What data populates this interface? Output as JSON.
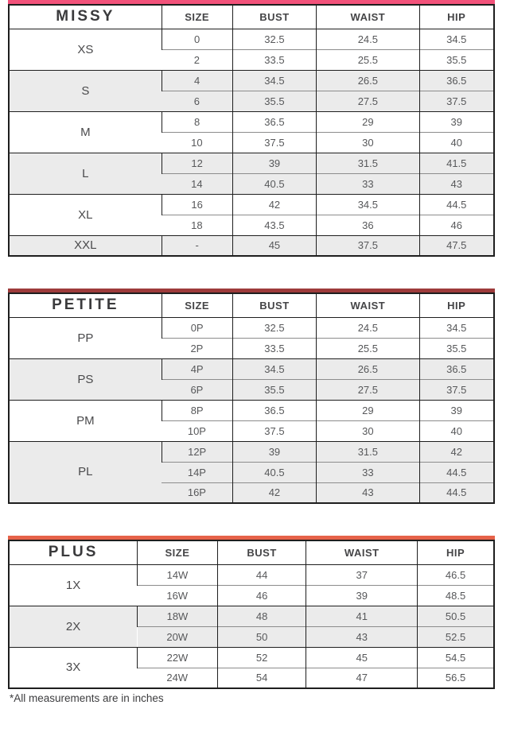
{
  "page": {
    "footnote": "*All measurements are in inches"
  },
  "columns": [
    "SIZE",
    "BUST",
    "WAIST",
    "HIP"
  ],
  "tables": [
    {
      "title": "MISSY",
      "accent_color": "#f2527a",
      "groups": [
        {
          "label": "XS",
          "shaded": false,
          "rows": [
            [
              "0",
              "32.5",
              "24.5",
              "34.5"
            ],
            [
              "2",
              "33.5",
              "25.5",
              "35.5"
            ]
          ]
        },
        {
          "label": "S",
          "shaded": true,
          "rows": [
            [
              "4",
              "34.5",
              "26.5",
              "36.5"
            ],
            [
              "6",
              "35.5",
              "27.5",
              "37.5"
            ]
          ]
        },
        {
          "label": "M",
          "shaded": false,
          "rows": [
            [
              "8",
              "36.5",
              "29",
              "39"
            ],
            [
              "10",
              "37.5",
              "30",
              "40"
            ]
          ]
        },
        {
          "label": "L",
          "shaded": true,
          "rows": [
            [
              "12",
              "39",
              "31.5",
              "41.5"
            ],
            [
              "14",
              "40.5",
              "33",
              "43"
            ]
          ]
        },
        {
          "label": "XL",
          "shaded": false,
          "rows": [
            [
              "16",
              "42",
              "34.5",
              "44.5"
            ],
            [
              "18",
              "43.5",
              "36",
              "46"
            ]
          ]
        },
        {
          "label": "XXL",
          "shaded": true,
          "rows": [
            [
              "-",
              "45",
              "37.5",
              "47.5"
            ]
          ]
        }
      ]
    },
    {
      "title": "PETITE",
      "accent_color": "#9e3b3b",
      "groups": [
        {
          "label": "PP",
          "shaded": false,
          "rows": [
            [
              "0P",
              "32.5",
              "24.5",
              "34.5"
            ],
            [
              "2P",
              "33.5",
              "25.5",
              "35.5"
            ]
          ]
        },
        {
          "label": "PS",
          "shaded": true,
          "rows": [
            [
              "4P",
              "34.5",
              "26.5",
              "36.5"
            ],
            [
              "6P",
              "35.5",
              "27.5",
              "37.5"
            ]
          ]
        },
        {
          "label": "PM",
          "shaded": false,
          "rows": [
            [
              "8P",
              "36.5",
              "29",
              "39"
            ],
            [
              "10P",
              "37.5",
              "30",
              "40"
            ]
          ]
        },
        {
          "label": "PL",
          "shaded": true,
          "rows": [
            [
              "12P",
              "39",
              "31.5",
              "42"
            ],
            [
              "14P",
              "40.5",
              "33",
              "44.5"
            ],
            [
              "16P",
              "42",
              "43",
              "44.5"
            ]
          ]
        }
      ]
    },
    {
      "title": "PLUS",
      "accent_color": "#e66249",
      "groups": [
        {
          "label": "1X",
          "shaded": false,
          "rows": [
            [
              "14W",
              "44",
              "37",
              "46.5"
            ],
            [
              "16W",
              "46",
              "39",
              "48.5"
            ]
          ]
        },
        {
          "label": "2X",
          "shaded": true,
          "rows": [
            [
              "18W",
              "48",
              "41",
              "50.5"
            ],
            [
              "20W",
              "50",
              "43",
              "52.5"
            ]
          ]
        },
        {
          "label": "3X",
          "shaded": false,
          "rows": [
            [
              "22W",
              "52",
              "45",
              "54.5"
            ],
            [
              "24W",
              "54",
              "47",
              "56.5"
            ]
          ]
        }
      ]
    }
  ]
}
